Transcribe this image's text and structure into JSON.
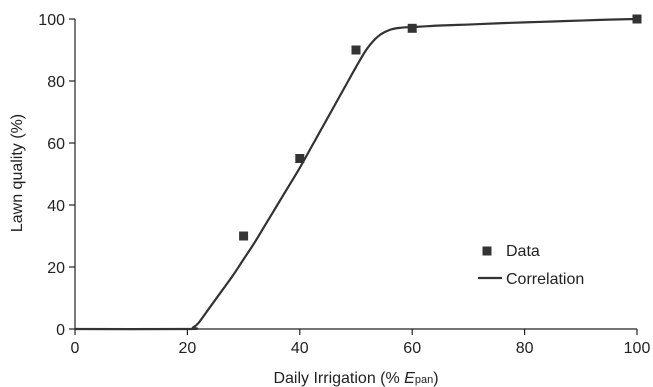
{
  "chart_data": {
    "type": "scatter",
    "title": "",
    "xlabel": "Daily Irrigation (% ",
    "xlabel_var": "E",
    "xlabel_sub": "pan",
    "xlabel_close": ")",
    "ylabel": "Lawn quality (%)",
    "xlim": [
      0,
      100
    ],
    "ylim": [
      0,
      100
    ],
    "x_ticks": [
      0,
      20,
      40,
      60,
      80,
      100
    ],
    "y_ticks": [
      0,
      20,
      40,
      60,
      80,
      100
    ],
    "x_tick_labels": [
      "0",
      "20",
      "40",
      "60",
      "80",
      "100"
    ],
    "y_tick_labels": [
      "0",
      "20",
      "40",
      "60",
      "80",
      "100"
    ],
    "grid": false,
    "legend_position": "right",
    "series": [
      {
        "name": "Data",
        "kind": "markers",
        "marker": "square",
        "color": "#333333",
        "x": [
          30,
          40,
          50,
          60,
          100
        ],
        "y": [
          30,
          55,
          90,
          97,
          100
        ]
      },
      {
        "name": "Correlation",
        "kind": "line",
        "color": "#333333",
        "x": [
          0,
          20,
          21,
          22,
          24,
          26,
          28,
          30,
          32,
          34,
          36,
          38,
          40,
          42,
          44,
          46,
          48,
          50,
          52,
          54,
          56,
          58,
          60,
          62,
          65,
          70,
          75,
          80,
          85,
          90,
          95,
          100
        ],
        "y": [
          0,
          0,
          0.5,
          2,
          7,
          12,
          17,
          22.5,
          28,
          34,
          40,
          46,
          52,
          58.5,
          65,
          71.5,
          78,
          84.5,
          90.5,
          94.5,
          96.5,
          97.2,
          97.4,
          97.6,
          97.9,
          98.2,
          98.6,
          98.9,
          99.2,
          99.5,
          99.8,
          100
        ]
      }
    ]
  }
}
